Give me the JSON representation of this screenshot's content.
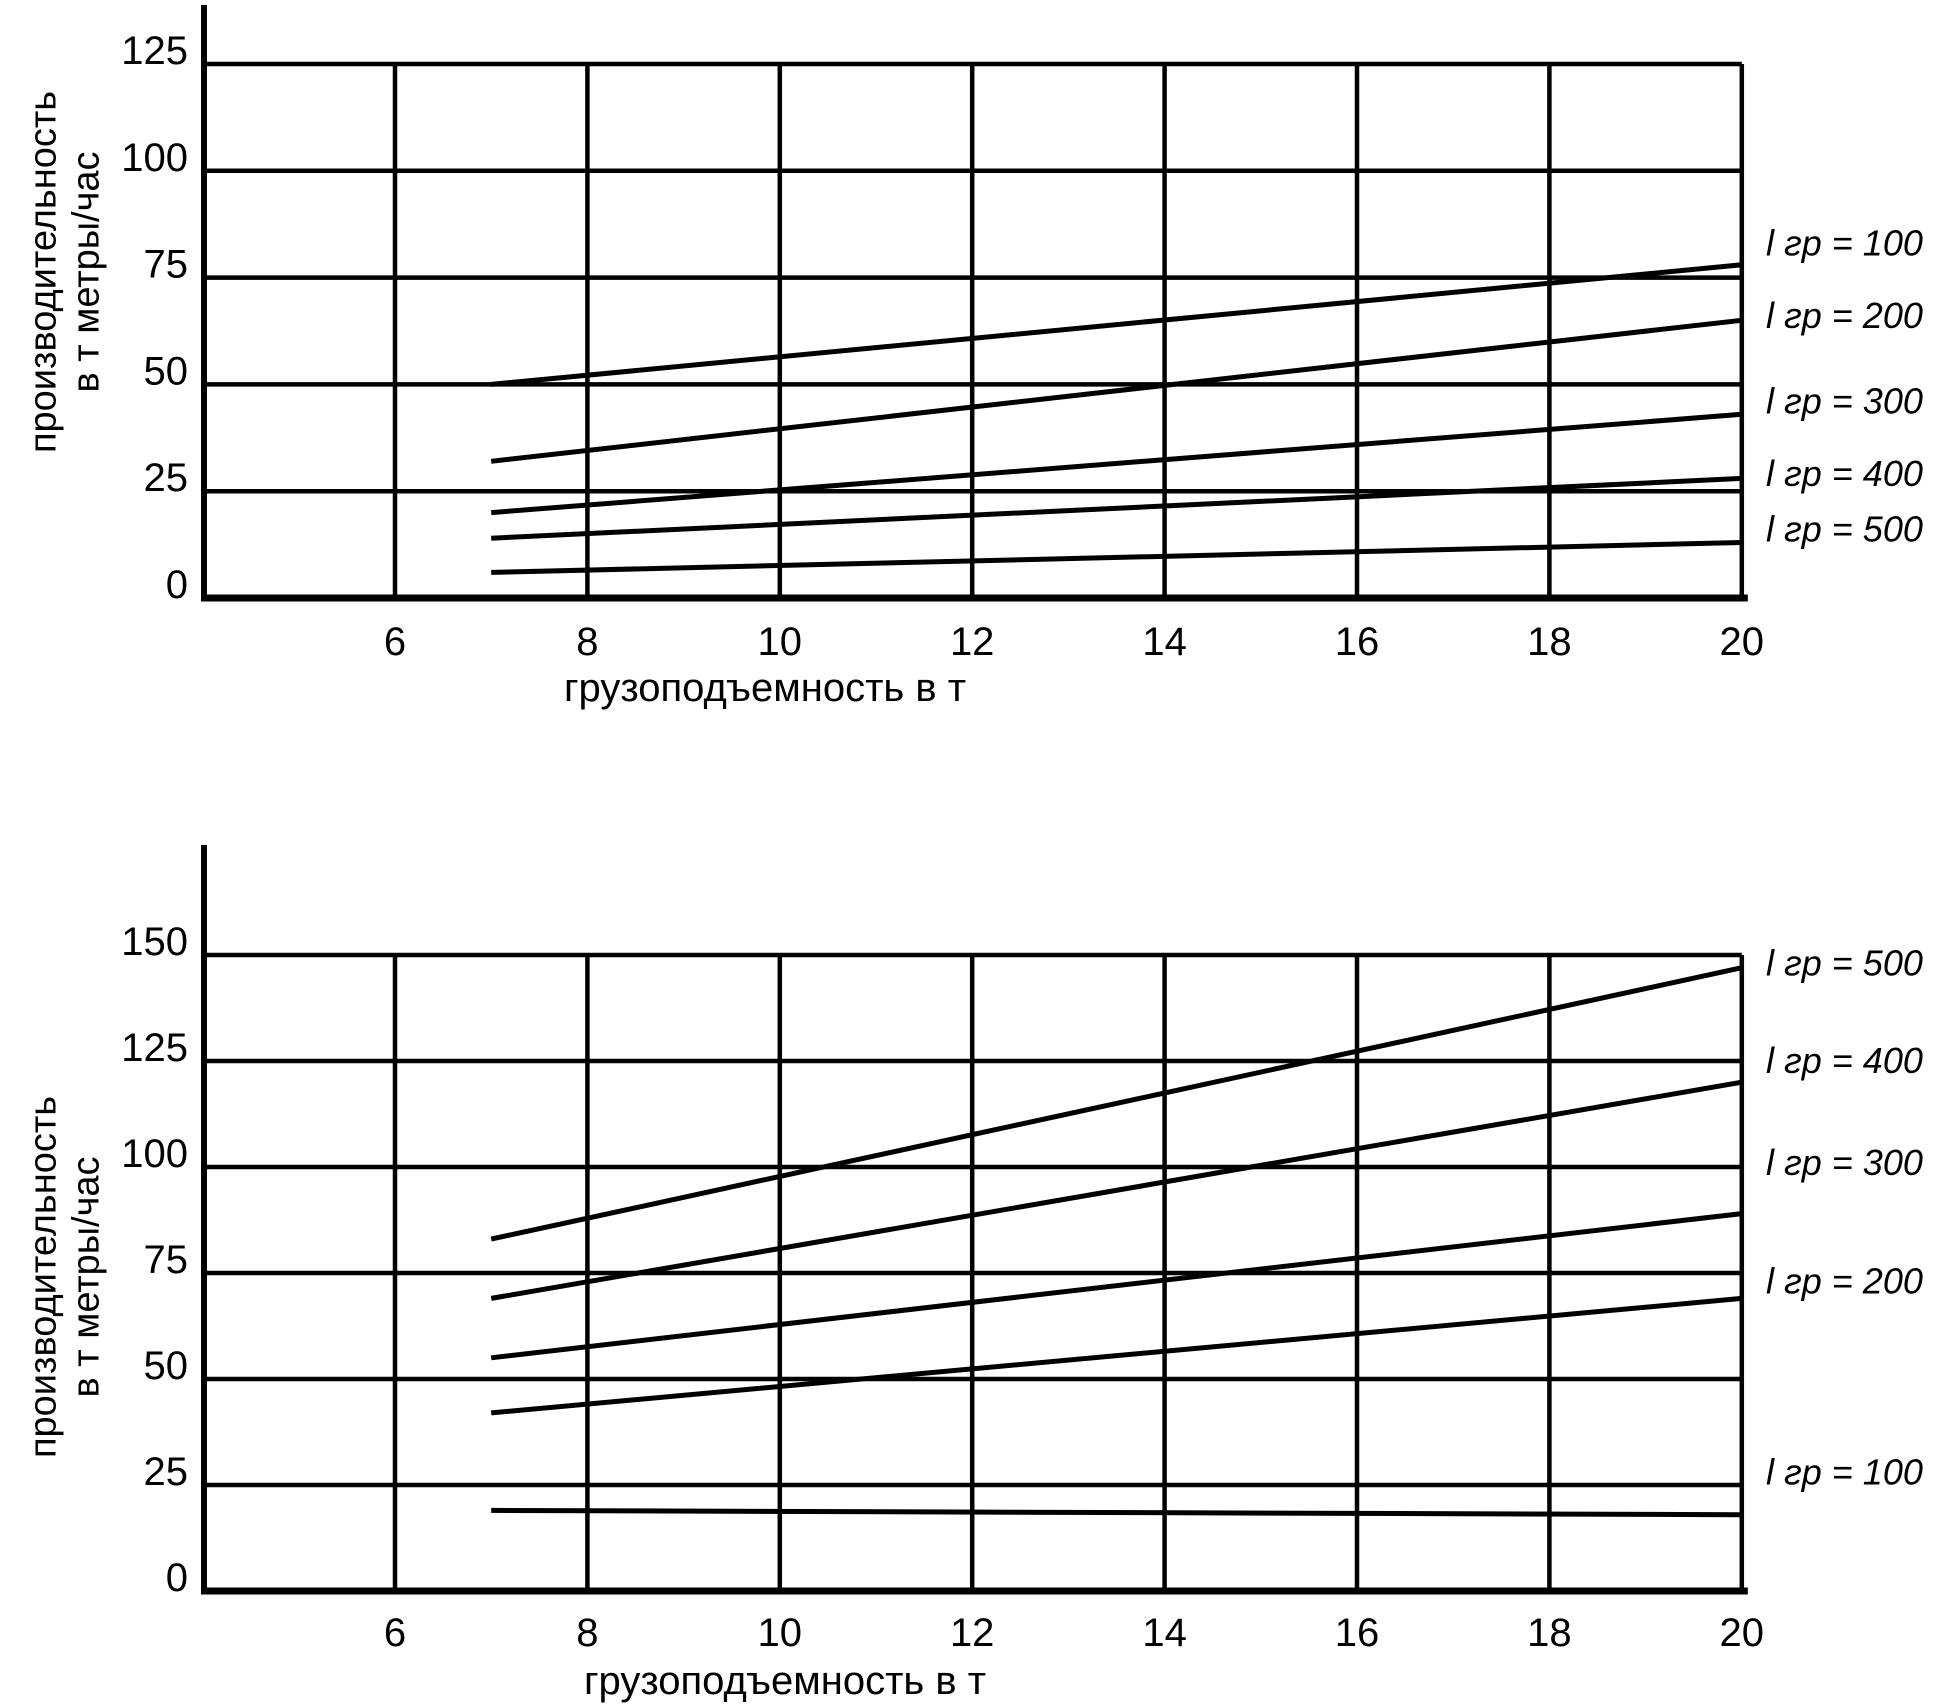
{
  "page": {
    "background": "#ffffff",
    "line_color": "#000000"
  },
  "chart_data": [
    {
      "type": "line",
      "position": "top",
      "title": "",
      "xlabel": "грузоподъемность в т",
      "ylabel_lines": [
        "производительность",
        "в т метры/час"
      ],
      "x_ticks": [
        6,
        8,
        10,
        12,
        14,
        16,
        18,
        20
      ],
      "y_ticks": [
        0,
        25,
        50,
        75,
        100,
        125
      ],
      "xlim": [
        4,
        20
      ],
      "ylim": [
        0,
        139
      ],
      "grid": true,
      "legend_position": "right-of-plot",
      "series": [
        {
          "name": "l гр = 100",
          "points": [
            [
              7,
              50
            ],
            [
              20,
              78
            ]
          ],
          "label_y": 83
        },
        {
          "name": "l гр = 200",
          "points": [
            [
              7,
              32
            ],
            [
              20,
              65
            ]
          ],
          "label_y": 66
        },
        {
          "name": "l гр = 300",
          "points": [
            [
              7,
              20
            ],
            [
              20,
              43
            ]
          ],
          "label_y": 46
        },
        {
          "name": "l гр = 400",
          "points": [
            [
              7,
              14
            ],
            [
              20,
              28
            ]
          ],
          "label_y": 29
        },
        {
          "name": "l гр = 500",
          "points": [
            [
              7,
              6
            ],
            [
              20,
              13
            ]
          ],
          "label_y": 16
        }
      ]
    },
    {
      "type": "line",
      "position": "bottom",
      "title": "",
      "xlabel": "грузоподъемность в т",
      "ylabel_lines": [
        "производительность",
        "в т метры/час"
      ],
      "x_ticks": [
        6,
        8,
        10,
        12,
        14,
        16,
        18,
        20
      ],
      "y_ticks": [
        0,
        25,
        50,
        75,
        100,
        125,
        150
      ],
      "xlim": [
        4,
        20
      ],
      "ylim": [
        0,
        176
      ],
      "grid": true,
      "legend_position": "right-of-plot",
      "series": [
        {
          "name": "l гр = 500",
          "points": [
            [
              7,
              83
            ],
            [
              20,
              147
            ]
          ],
          "label_y": 148
        },
        {
          "name": "l гр = 400",
          "points": [
            [
              7,
              69
            ],
            [
              20,
              120
            ]
          ],
          "label_y": 125
        },
        {
          "name": "l гр = 300",
          "points": [
            [
              7,
              55
            ],
            [
              20,
              89
            ]
          ],
          "label_y": 101
        },
        {
          "name": "l гр = 200",
          "points": [
            [
              7,
              42
            ],
            [
              20,
              69
            ]
          ],
          "label_y": 73
        },
        {
          "name": "l гр = 100",
          "points": [
            [
              7,
              19
            ],
            [
              20,
              18
            ]
          ],
          "label_y": 28
        }
      ]
    }
  ]
}
